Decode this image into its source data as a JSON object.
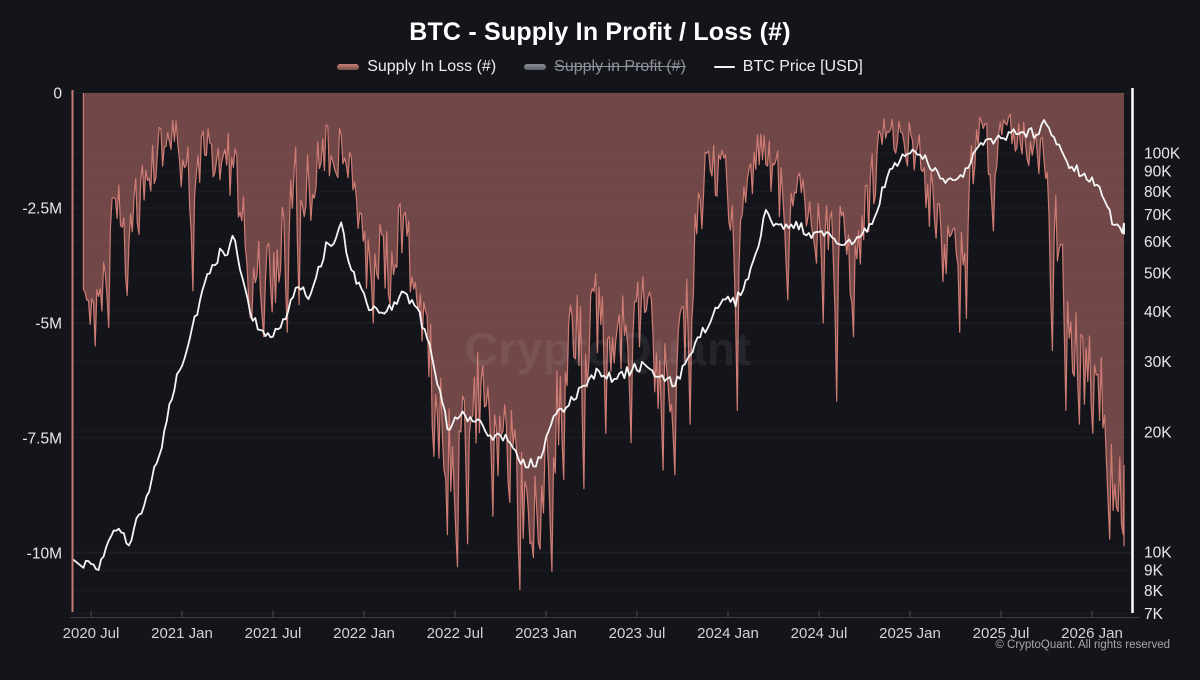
{
  "title": "BTC - Supply In Profit / Loss (#)",
  "legend": [
    {
      "label": "Supply In Loss (#)",
      "type": "area",
      "color": "#ce7c74",
      "disabled": false
    },
    {
      "label": "Supply in Profit (#)",
      "type": "area",
      "color": "#8a8d94",
      "disabled": true
    },
    {
      "label": "BTC Price [USD]",
      "type": "line",
      "color": "#f5f5f5",
      "disabled": false
    }
  ],
  "watermark": "CryptoQuant",
  "footer": "© CryptoQuant. All rights reserved",
  "chart_data": {
    "type": "area+line",
    "title": "BTC - Supply In Profit / Loss (#)",
    "left_axis": {
      "label_unit": "BTC supply in loss (negative, millions)",
      "ticks": [
        {
          "v": 0,
          "label": "0"
        },
        {
          "v": -2.5,
          "label": "-2.5M"
        },
        {
          "v": -5,
          "label": "-5M"
        },
        {
          "v": -7.5,
          "label": "-7.5M"
        },
        {
          "v": -10,
          "label": "-10M"
        }
      ],
      "range": [
        0,
        -11.4
      ]
    },
    "right_axis": {
      "scale": "log",
      "label_unit": "BTC price, USD (thousands)",
      "ticks": [
        {
          "v": 100,
          "label": "100K"
        },
        {
          "v": 90,
          "label": "90K"
        },
        {
          "v": 80,
          "label": "80K"
        },
        {
          "v": 70,
          "label": "70K"
        },
        {
          "v": 60,
          "label": "60K"
        },
        {
          "v": 50,
          "label": "50K"
        },
        {
          "v": 40,
          "label": "40K"
        },
        {
          "v": 30,
          "label": "30K"
        },
        {
          "v": 20,
          "label": "20K"
        },
        {
          "v": 10,
          "label": "10K"
        },
        {
          "v": 9,
          "label": "9K"
        },
        {
          "v": 8,
          "label": "8K"
        },
        {
          "v": 7,
          "label": "7K"
        }
      ],
      "range_kusd": [
        6.9,
        141
      ]
    },
    "x_ticks": [
      {
        "t": 2020.5,
        "label": "2020 Jul"
      },
      {
        "t": 2021.0,
        "label": "2021 Jan"
      },
      {
        "t": 2021.5,
        "label": "2021 Jul"
      },
      {
        "t": 2022.0,
        "label": "2022 Jan"
      },
      {
        "t": 2022.5,
        "label": "2022 Jul"
      },
      {
        "t": 2023.0,
        "label": "2023 Jan"
      },
      {
        "t": 2023.5,
        "label": "2023 Jul"
      },
      {
        "t": 2024.0,
        "label": "2024 Jan"
      },
      {
        "t": 2024.5,
        "label": "2024 Jul"
      },
      {
        "t": 2025.0,
        "label": "2025 Jan"
      },
      {
        "t": 2025.5,
        "label": "2025 Jul"
      },
      {
        "t": 2026.0,
        "label": "2026 Jan"
      }
    ],
    "series": {
      "t0": 2020.4583,
      "dt_years": 0.0833333,
      "supply_in_loss_m": [
        -3.8,
        -4.0,
        -2.0,
        -2.6,
        -1.6,
        -1.0,
        -0.7,
        -1.6,
        -0.9,
        -1.0,
        -1.4,
        -3.4,
        -3.6,
        -3.0,
        -1.4,
        -1.8,
        -0.9,
        -1.0,
        -2.0,
        -3.4,
        -3.2,
        -2.6,
        -3.6,
        -5.8,
        -7.3,
        -6.9,
        -6.0,
        -6.9,
        -6.7,
        -8.6,
        -8.8,
        -6.8,
        -4.6,
        -5.0,
        -4.2,
        -4.8,
        -4.6,
        -4.2,
        -5.6,
        -5.8,
        -3.8,
        -1.6,
        -1.3,
        -2.4,
        -1.3,
        -0.9,
        -1.8,
        -2.0,
        -2.4,
        -2.6,
        -3.0,
        -2.8,
        -1.6,
        -0.5,
        -0.8,
        -0.9,
        -2.0,
        -2.8,
        -2.4,
        -0.7,
        -1.1,
        -0.5,
        -0.9,
        -0.9,
        -2.2,
        -4.6,
        -5.6,
        -5.6,
        -8.8,
        -9.2
      ],
      "loss_volatility_m": [
        1.2,
        1.4,
        1.2,
        1.2,
        1.0,
        0.8,
        0.6,
        1.2,
        0.8,
        0.9,
        1.1,
        1.4,
        1.3,
        1.4,
        1.0,
        1.1,
        0.8,
        0.8,
        1.1,
        1.3,
        1.2,
        1.2,
        1.3,
        1.6,
        1.6,
        1.5,
        1.5,
        1.4,
        1.3,
        1.5,
        1.3,
        1.8,
        1.4,
        1.6,
        1.3,
        1.3,
        1.4,
        1.2,
        1.5,
        1.5,
        1.6,
        0.9,
        0.9,
        1.4,
        0.9,
        0.8,
        1.1,
        1.1,
        1.2,
        1.3,
        1.5,
        1.3,
        1.1,
        0.5,
        0.7,
        0.8,
        1.2,
        1.3,
        1.3,
        0.6,
        0.9,
        0.5,
        0.8,
        0.8,
        1.4,
        1.4,
        1.4,
        1.5,
        0.9,
        0.8
      ],
      "loss_spikes_m": [
        [
          2020.52,
          -5.5
        ],
        [
          2020.6,
          -5.1
        ],
        [
          2020.7,
          -4.4
        ],
        [
          2021.06,
          -4.3
        ],
        [
          2021.38,
          -4.9
        ],
        [
          2021.45,
          -5.3
        ],
        [
          2021.58,
          -5.2
        ],
        [
          2021.64,
          -4.6
        ],
        [
          2022.05,
          -5.0
        ],
        [
          2022.14,
          -4.6
        ],
        [
          2022.38,
          -7.9
        ],
        [
          2022.46,
          -9.6
        ],
        [
          2022.51,
          -10.3
        ],
        [
          2022.57,
          -9.8
        ],
        [
          2022.71,
          -9.2
        ],
        [
          2022.8,
          -8.9
        ],
        [
          2022.86,
          -10.8
        ],
        [
          2022.93,
          -10.1
        ],
        [
          2023.03,
          -10.4
        ],
        [
          2023.1,
          -8.4
        ],
        [
          2023.21,
          -8.6
        ],
        [
          2023.33,
          -7.4
        ],
        [
          2023.47,
          -7.6
        ],
        [
          2023.64,
          -8.2
        ],
        [
          2023.71,
          -8.3
        ],
        [
          2023.79,
          -7.2
        ],
        [
          2024.05,
          -6.9
        ],
        [
          2024.33,
          -4.5
        ],
        [
          2024.52,
          -5.0
        ],
        [
          2024.6,
          -6.7
        ],
        [
          2024.69,
          -5.3
        ],
        [
          2025.18,
          -4.1
        ],
        [
          2025.27,
          -5.2
        ],
        [
          2025.31,
          -4.9
        ],
        [
          2025.46,
          -3.0
        ],
        [
          2025.78,
          -5.6
        ],
        [
          2025.86,
          -6.9
        ],
        [
          2025.93,
          -7.2
        ],
        [
          2026.0,
          -7.4
        ],
        [
          2026.1,
          -9.7
        ],
        [
          2026.14,
          -9.1
        ],
        [
          2026.17,
          -9.6
        ]
      ],
      "btc_price_kusd": [
        9.4,
        9.2,
        11.6,
        10.6,
        13.2,
        17.5,
        26,
        34,
        47,
        56,
        58,
        40,
        34,
        36,
        46,
        44,
        58,
        62,
        48,
        40,
        40.5,
        44,
        41,
        31,
        20.5,
        22,
        21.5,
        19.5,
        19.5,
        16.6,
        16.8,
        21.5,
        23.5,
        26.5,
        28.5,
        27,
        28.5,
        29.5,
        27,
        26.5,
        31,
        36.5,
        42.5,
        42.5,
        50,
        67,
        65,
        66,
        62.5,
        62,
        58.5,
        61,
        66,
        88,
        97,
        101,
        91,
        84,
        89,
        105,
        106,
        112,
        113,
        112,
        114,
        94,
        88,
        82,
        65,
        64.5
      ],
      "price_spikes_kusd": [
        [
          2021.28,
          62
        ],
        [
          2021.87,
          67
        ],
        [
          2024.21,
          72
        ],
        [
          2025.02,
          102
        ],
        [
          2025.74,
          121
        ],
        [
          2025.8,
          105
        ],
        [
          2026.12,
          66
        ]
      ]
    },
    "colors": {
      "background": "#14151a",
      "loss_stroke": "#ce7c74",
      "loss_fill": "rgba(206,124,116,0.5)",
      "price_line": "#f5f5f5",
      "axis_left": "#c47a73",
      "axis_right": "#ffffff",
      "axis_bottom": "#3c3d44",
      "grid": "rgba(255,255,255,0.055)",
      "grid_right": "rgba(255,255,255,0.035)",
      "y_tick_label": "#e8e8ec",
      "x_tick_label": "#d2d2d8"
    },
    "legend_position": "top-center",
    "grid": true
  }
}
